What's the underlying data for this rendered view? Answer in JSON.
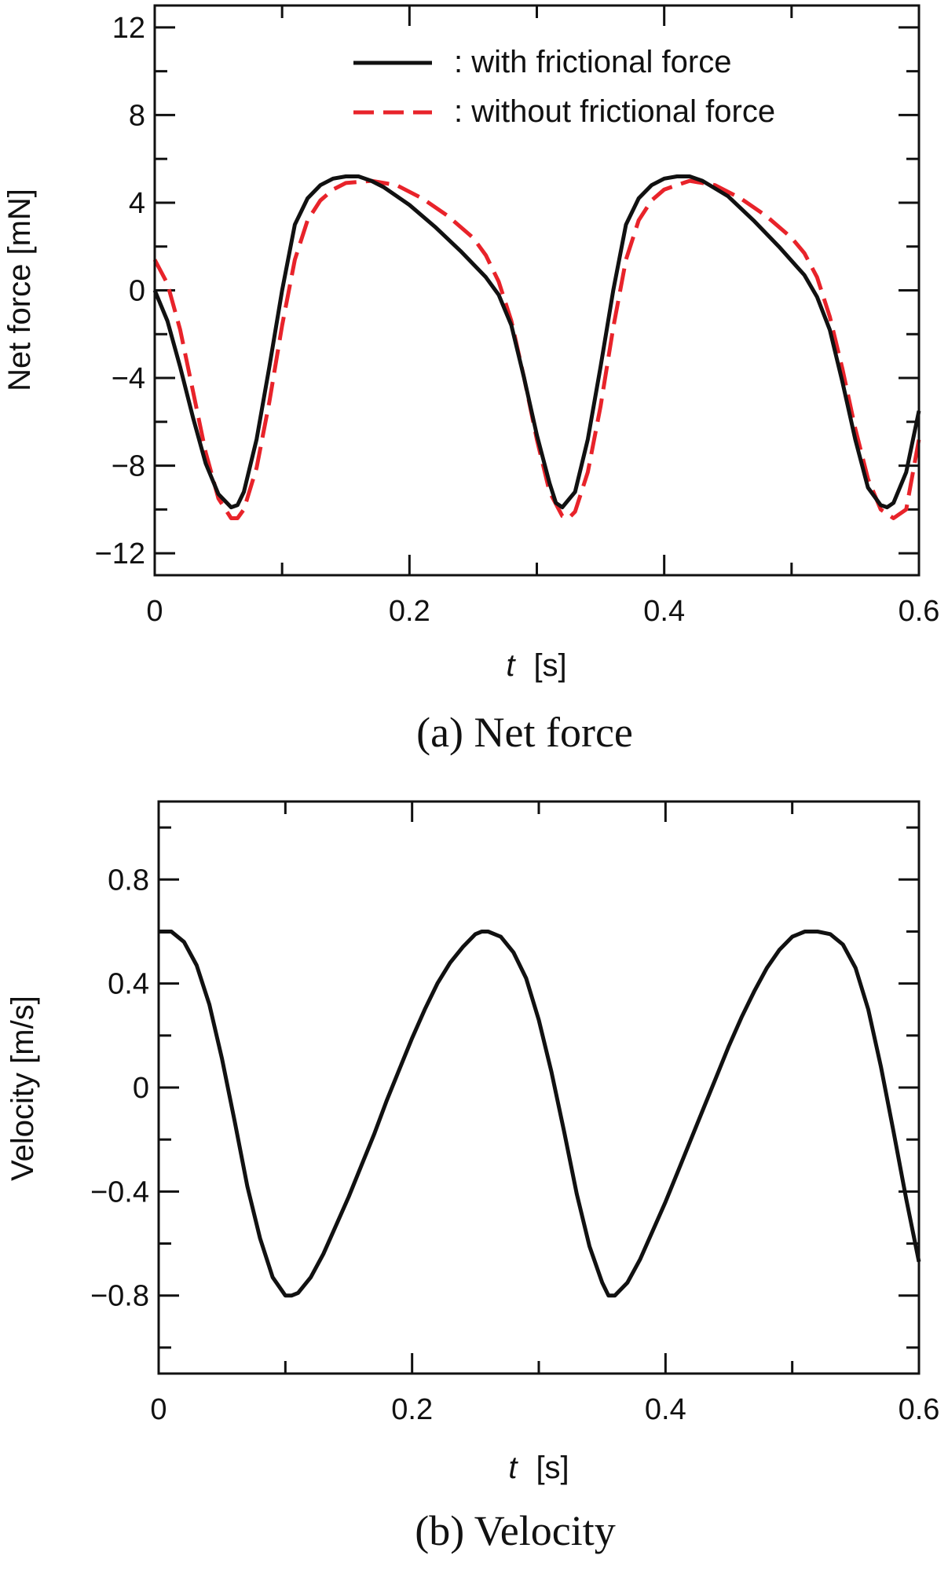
{
  "colors": {
    "with_friction": "#111111",
    "without_friction": "#e8232a",
    "axes": "#111111"
  },
  "chart_data": [
    {
      "type": "line",
      "caption": "(a) Net force",
      "xlabel_var": "t",
      "xlabel_unit": "[s]",
      "ylabel": "Net force [mN]",
      "xlim": [
        0,
        0.6
      ],
      "ylim": [
        -13,
        13
      ],
      "xticks": [
        0,
        0.2,
        0.4,
        0.6
      ],
      "xtick_labels": [
        "0",
        "0.2",
        "0.4",
        "0.6"
      ],
      "xminor_ticks": [
        0.1,
        0.3,
        0.5
      ],
      "yticks": [
        -12,
        -8,
        -4,
        0,
        4,
        8,
        12
      ],
      "ytick_labels": [
        "−12",
        "−8",
        "−4",
        "0",
        "4",
        "8",
        "12"
      ],
      "yminor_ticks": [
        -10,
        -6,
        -2,
        2,
        6,
        10
      ],
      "legend_position": "top-right",
      "series": [
        {
          "name": ": with frictional force",
          "style": "solid",
          "x": [
            0,
            0.01,
            0.02,
            0.03,
            0.04,
            0.05,
            0.06,
            0.065,
            0.07,
            0.08,
            0.09,
            0.1,
            0.11,
            0.12,
            0.13,
            0.14,
            0.15,
            0.16,
            0.17,
            0.18,
            0.2,
            0.22,
            0.24,
            0.26,
            0.27,
            0.28,
            0.29,
            0.3,
            0.31,
            0.315,
            0.32,
            0.33,
            0.34,
            0.35,
            0.36,
            0.37,
            0.38,
            0.39,
            0.4,
            0.41,
            0.42,
            0.43,
            0.45,
            0.47,
            0.49,
            0.51,
            0.52,
            0.53,
            0.54,
            0.55,
            0.56,
            0.57,
            0.575,
            0.58,
            0.59,
            0.6
          ],
          "y": [
            0,
            -1.4,
            -3.5,
            -5.8,
            -7.9,
            -9.3,
            -9.9,
            -9.8,
            -9.2,
            -6.8,
            -3.5,
            0,
            3.0,
            4.2,
            4.8,
            5.1,
            5.2,
            5.2,
            5.0,
            4.7,
            3.9,
            2.9,
            1.8,
            0.6,
            -0.2,
            -1.6,
            -4.0,
            -6.6,
            -8.8,
            -9.7,
            -9.9,
            -9.2,
            -6.8,
            -3.5,
            0,
            3.0,
            4.2,
            4.8,
            5.1,
            5.2,
            5.2,
            5.0,
            4.3,
            3.2,
            2.0,
            0.7,
            -0.3,
            -1.8,
            -4.2,
            -6.8,
            -9.0,
            -9.8,
            -9.9,
            -9.7,
            -8.3,
            -5.5
          ]
        },
        {
          "name": ": without frictional force",
          "style": "dashed",
          "x": [
            0,
            0.01,
            0.02,
            0.03,
            0.04,
            0.05,
            0.06,
            0.065,
            0.07,
            0.08,
            0.09,
            0.1,
            0.11,
            0.12,
            0.13,
            0.14,
            0.15,
            0.17,
            0.19,
            0.21,
            0.23,
            0.25,
            0.26,
            0.27,
            0.28,
            0.29,
            0.3,
            0.31,
            0.32,
            0.325,
            0.33,
            0.34,
            0.35,
            0.36,
            0.37,
            0.38,
            0.39,
            0.4,
            0.42,
            0.44,
            0.46,
            0.48,
            0.5,
            0.51,
            0.52,
            0.53,
            0.54,
            0.55,
            0.56,
            0.57,
            0.58,
            0.59,
            0.6
          ],
          "y": [
            1.4,
            0.3,
            -1.8,
            -4.6,
            -7.4,
            -9.5,
            -10.4,
            -10.4,
            -10.0,
            -8.1,
            -5.1,
            -1.6,
            1.4,
            3.2,
            4.1,
            4.6,
            4.9,
            5.0,
            4.8,
            4.2,
            3.4,
            2.4,
            1.6,
            0.4,
            -1.4,
            -4.0,
            -6.8,
            -9.2,
            -10.3,
            -10.4,
            -10.1,
            -8.3,
            -5.3,
            -1.7,
            1.4,
            3.2,
            4.1,
            4.6,
            5.0,
            4.8,
            4.2,
            3.4,
            2.4,
            1.7,
            0.6,
            -1.2,
            -3.6,
            -6.3,
            -8.6,
            -10.0,
            -10.4,
            -10.0,
            -6.8
          ]
        }
      ]
    },
    {
      "type": "line",
      "caption": "(b) Velocity",
      "xlabel_var": "t",
      "xlabel_unit": "[s]",
      "ylabel": "Velocity [m/s]",
      "xlim": [
        0,
        0.6
      ],
      "ylim": [
        -1.1,
        1.1
      ],
      "xticks": [
        0,
        0.2,
        0.4,
        0.6
      ],
      "xtick_labels": [
        "0",
        "0.2",
        "0.4",
        "0.6"
      ],
      "xminor_ticks": [
        0.1,
        0.3,
        0.5
      ],
      "yticks": [
        -0.8,
        -0.4,
        0,
        0.4,
        0.8
      ],
      "ytick_labels": [
        "−0.8",
        "−0.4",
        "0",
        "0.4",
        "0.8"
      ],
      "yminor_ticks": [
        -1.0,
        -0.6,
        -0.2,
        0.2,
        0.6,
        1.0
      ],
      "series": [
        {
          "name": "Velocity",
          "style": "solid",
          "x": [
            0,
            0.01,
            0.02,
            0.03,
            0.04,
            0.05,
            0.06,
            0.07,
            0.08,
            0.09,
            0.1,
            0.105,
            0.11,
            0.12,
            0.13,
            0.14,
            0.15,
            0.16,
            0.17,
            0.18,
            0.19,
            0.2,
            0.21,
            0.22,
            0.23,
            0.24,
            0.25,
            0.255,
            0.26,
            0.27,
            0.28,
            0.29,
            0.3,
            0.31,
            0.32,
            0.33,
            0.34,
            0.35,
            0.355,
            0.36,
            0.37,
            0.38,
            0.39,
            0.4,
            0.41,
            0.42,
            0.43,
            0.44,
            0.45,
            0.46,
            0.47,
            0.48,
            0.49,
            0.5,
            0.51,
            0.515,
            0.52,
            0.53,
            0.54,
            0.55,
            0.56,
            0.57,
            0.58,
            0.59,
            0.6
          ],
          "y": [
            0.6,
            0.6,
            0.56,
            0.47,
            0.32,
            0.11,
            -0.13,
            -0.38,
            -0.58,
            -0.73,
            -0.8,
            -0.8,
            -0.79,
            -0.73,
            -0.64,
            -0.53,
            -0.42,
            -0.3,
            -0.18,
            -0.05,
            0.07,
            0.19,
            0.3,
            0.4,
            0.48,
            0.54,
            0.59,
            0.6,
            0.6,
            0.58,
            0.52,
            0.42,
            0.26,
            0.06,
            -0.17,
            -0.41,
            -0.61,
            -0.75,
            -0.8,
            -0.8,
            -0.75,
            -0.66,
            -0.55,
            -0.44,
            -0.32,
            -0.2,
            -0.08,
            0.04,
            0.16,
            0.27,
            0.37,
            0.46,
            0.53,
            0.58,
            0.6,
            0.6,
            0.6,
            0.59,
            0.55,
            0.46,
            0.3,
            0.08,
            -0.17,
            -0.43,
            -0.67
          ]
        }
      ]
    }
  ]
}
